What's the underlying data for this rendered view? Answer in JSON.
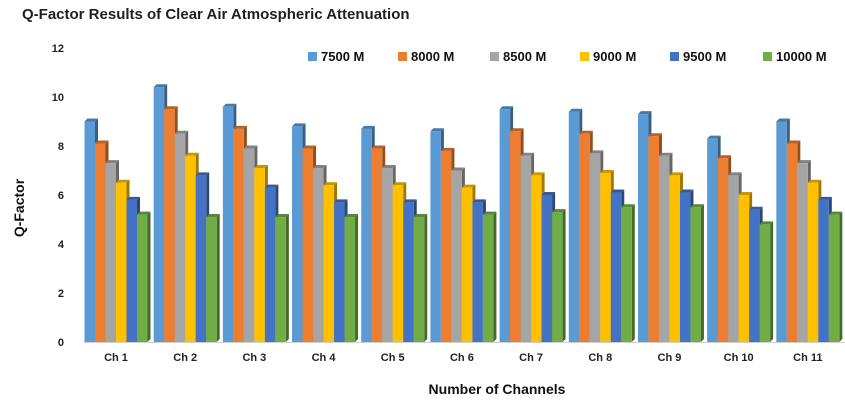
{
  "chart_data": {
    "type": "bar",
    "title": "Q-Factor Results of Clear Air Atmospheric Attenuation",
    "xlabel": "Number of Channels",
    "ylabel": "Q-Factor",
    "ylim": [
      0,
      12
    ],
    "yticks": [
      "0",
      "2",
      "4",
      "6",
      "8",
      "10",
      "12"
    ],
    "grid": false,
    "legend_position": "top",
    "categories": [
      "Ch 1",
      "Ch 2",
      "Ch 3",
      "Ch 4",
      "Ch 5",
      "Ch 6",
      "Ch 7",
      "Ch 8",
      "Ch 9",
      "Ch 10",
      "Ch 11"
    ],
    "series": [
      {
        "name": "7500 M",
        "color": "#5b9bd5",
        "values": [
          9.0,
          10.4,
          9.6,
          8.8,
          8.7,
          8.6,
          9.5,
          9.4,
          9.3,
          8.3,
          9.0
        ]
      },
      {
        "name": "8000 M",
        "color": "#ed7d31",
        "values": [
          8.1,
          9.5,
          8.7,
          7.9,
          7.9,
          7.8,
          8.6,
          8.5,
          8.4,
          7.5,
          8.1
        ]
      },
      {
        "name": "8500 M",
        "color": "#a5a5a5",
        "values": [
          7.3,
          8.5,
          7.9,
          7.1,
          7.1,
          7.0,
          7.6,
          7.7,
          7.6,
          6.8,
          7.3
        ]
      },
      {
        "name": "9000 M",
        "color": "#ffc000",
        "values": [
          6.5,
          7.6,
          7.1,
          6.4,
          6.4,
          6.3,
          6.8,
          6.9,
          6.8,
          6.0,
          6.5
        ]
      },
      {
        "name": "9500 M",
        "color": "#4472c4",
        "values": [
          5.8,
          6.8,
          6.3,
          5.7,
          5.7,
          5.7,
          6.0,
          6.1,
          6.1,
          5.4,
          5.8
        ]
      },
      {
        "name": "10000 M",
        "color": "#70ad47",
        "values": [
          5.2,
          5.1,
          5.1,
          5.1,
          5.1,
          5.2,
          5.3,
          5.5,
          5.5,
          4.8,
          5.2
        ]
      }
    ]
  }
}
